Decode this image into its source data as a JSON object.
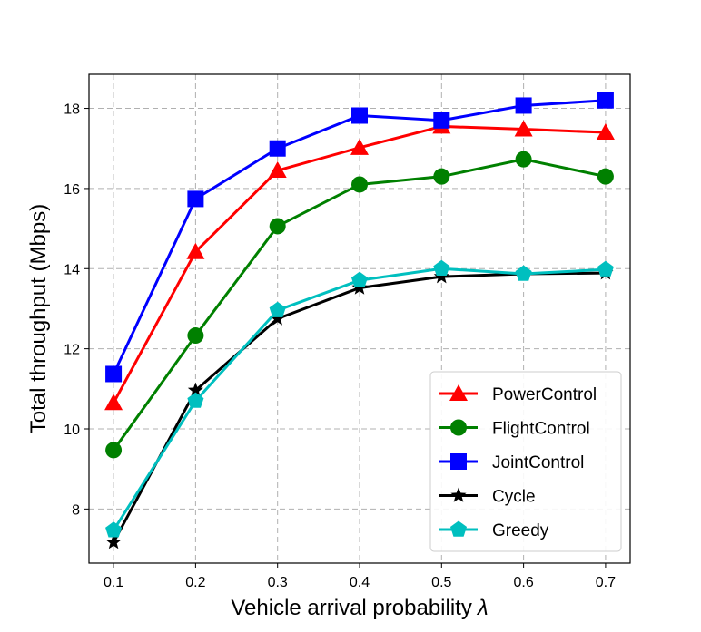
{
  "chart_data": {
    "type": "line",
    "title": "",
    "xlabel": "Vehicle arrival probability",
    "xlabel_symbol": "λ",
    "ylabel": "Total throughput (Mbps)",
    "x": [
      0.1,
      0.2,
      0.3,
      0.4,
      0.5,
      0.6,
      0.7
    ],
    "x_tick_labels": [
      "0.1",
      "0.2",
      "0.3",
      "0.4",
      "0.5",
      "0.6",
      "0.7"
    ],
    "xlim": [
      0.07,
      0.73
    ],
    "ylim": [
      6.65,
      18.85
    ],
    "y_ticks": [
      8,
      10,
      12,
      14,
      16,
      18
    ],
    "y_tick_labels": [
      "8",
      "10",
      "12",
      "14",
      "16",
      "18"
    ],
    "grid": true,
    "legend_position": "lower-right",
    "series": [
      {
        "name": "PowerControl",
        "color": "#ff0000",
        "marker": "triangle",
        "values": [
          10.65,
          14.42,
          16.45,
          17.02,
          17.55,
          17.48,
          17.4
        ]
      },
      {
        "name": "FlightControl",
        "color": "#008000",
        "marker": "circle",
        "values": [
          9.47,
          12.33,
          15.06,
          16.1,
          16.3,
          16.73,
          16.3
        ]
      },
      {
        "name": "JointControl",
        "color": "#0000ff",
        "marker": "square",
        "values": [
          11.37,
          15.74,
          17.0,
          17.82,
          17.7,
          18.07,
          18.2
        ]
      },
      {
        "name": "Cycle",
        "color": "#000000",
        "marker": "star",
        "values": [
          7.17,
          10.96,
          12.75,
          13.52,
          13.8,
          13.87,
          13.89
        ]
      },
      {
        "name": "Greedy",
        "color": "#00bfbf",
        "marker": "pentagon",
        "values": [
          7.47,
          10.7,
          12.96,
          13.71,
          14.0,
          13.87,
          13.98
        ]
      }
    ]
  }
}
